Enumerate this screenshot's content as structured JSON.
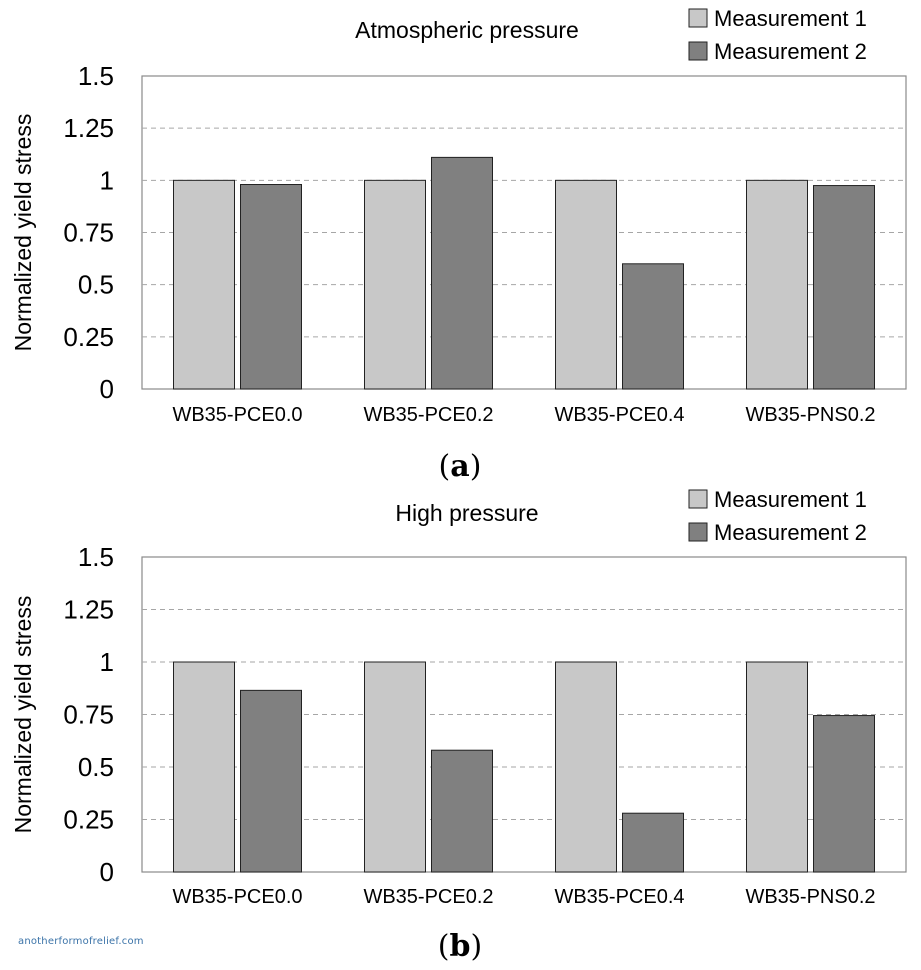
{
  "chart_data": [
    {
      "type": "bar",
      "panel_label": "a",
      "title": "Atmospheric pressure",
      "ylabel": "Normalized yield stress",
      "xlabel": "",
      "ylim": [
        0,
        1.5
      ],
      "yticks": [
        "0",
        "0.25",
        "0.5",
        "0.75",
        "1",
        "1.25",
        "1.5"
      ],
      "grid": true,
      "legend": "top-right",
      "categories": [
        "WB35-PCE0.0",
        "WB35-PCE0.2",
        "WB35-PCE0.4",
        "WB35-PNS0.2"
      ],
      "series": [
        {
          "name": "Measurement 1",
          "color": "#c8c8c8",
          "values": [
            1.0,
            1.0,
            1.0,
            1.0
          ]
        },
        {
          "name": "Measurement 2",
          "color": "#808080",
          "values": [
            0.98,
            1.11,
            0.6,
            0.975
          ]
        }
      ]
    },
    {
      "type": "bar",
      "panel_label": "b",
      "title": "High pressure",
      "ylabel": "Normalized yield stress",
      "xlabel": "",
      "ylim": [
        0,
        1.5
      ],
      "yticks": [
        "0",
        "0.25",
        "0.5",
        "0.75",
        "1",
        "1.25",
        "1.5"
      ],
      "grid": true,
      "legend": "top-right",
      "categories": [
        "WB35-PCE0.0",
        "WB35-PCE0.2",
        "WB35-PCE0.4",
        "WB35-PNS0.2"
      ],
      "series": [
        {
          "name": "Measurement 1",
          "color": "#c8c8c8",
          "values": [
            1.0,
            1.0,
            1.0,
            1.0
          ]
        },
        {
          "name": "Measurement 2",
          "color": "#808080",
          "values": [
            0.865,
            0.58,
            0.28,
            0.745
          ]
        }
      ]
    }
  ],
  "watermark": "anotherformofrelief.com"
}
